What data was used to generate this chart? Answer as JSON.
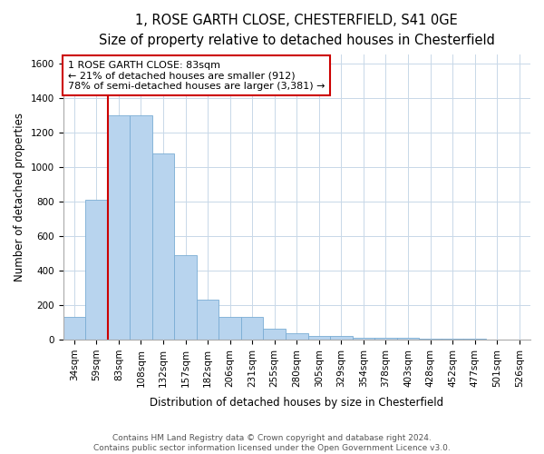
{
  "title_line1": "1, ROSE GARTH CLOSE, CHESTERFIELD, S41 0GE",
  "title_line2": "Size of property relative to detached houses in Chesterfield",
  "xlabel": "Distribution of detached houses by size in Chesterfield",
  "ylabel": "Number of detached properties",
  "bar_values": [
    130,
    810,
    1300,
    1300,
    1080,
    490,
    230,
    130,
    130,
    65,
    35,
    20,
    20,
    10,
    10,
    10,
    5,
    5,
    5
  ],
  "bin_labels": [
    "34sqm",
    "59sqm",
    "83sqm",
    "108sqm",
    "132sqm",
    "157sqm",
    "182sqm",
    "206sqm",
    "231sqm",
    "255sqm",
    "280sqm",
    "305sqm",
    "329sqm",
    "354sqm",
    "378sqm",
    "403sqm",
    "428sqm",
    "452sqm",
    "477sqm",
    "501sqm",
    "526sqm"
  ],
  "bar_color": "#b8d4ee",
  "bar_edge_color": "#7aadd4",
  "red_line_index": 2,
  "annotation_text": "1 ROSE GARTH CLOSE: 83sqm\n← 21% of detached houses are smaller (912)\n78% of semi-detached houses are larger (3,381) →",
  "annotation_box_color": "#ffffff",
  "annotation_border_color": "#cc0000",
  "ylim": [
    0,
    1650
  ],
  "yticks": [
    0,
    200,
    400,
    600,
    800,
    1000,
    1200,
    1400,
    1600
  ],
  "footnote": "Contains HM Land Registry data © Crown copyright and database right 2024.\nContains public sector information licensed under the Open Government Licence v3.0.",
  "title_fontsize": 10.5,
  "subtitle_fontsize": 9.5,
  "xlabel_fontsize": 8.5,
  "ylabel_fontsize": 8.5,
  "tick_fontsize": 7.5,
  "footnote_fontsize": 6.5
}
